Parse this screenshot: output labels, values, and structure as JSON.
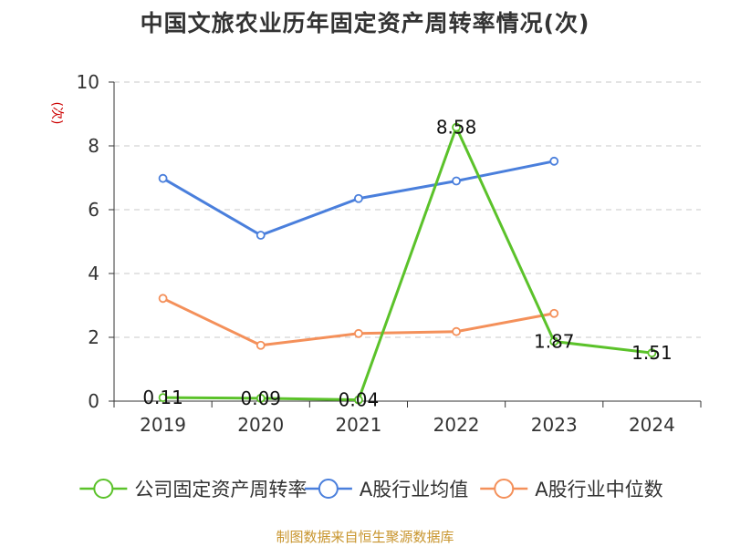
{
  "chart_data": {
    "type": "line",
    "title": "中国文旅农业历年固定资产周转率情况(次)",
    "ylabel": "(次)",
    "categories": [
      "2019",
      "2020",
      "2021",
      "2022",
      "2023",
      "2024"
    ],
    "ylim": [
      0,
      10
    ],
    "yticks": [
      0,
      2,
      4,
      6,
      8,
      10
    ],
    "grid": true,
    "legend_position": "bottom",
    "series": [
      {
        "name": "公司固定资产周转率",
        "color": "#5bc22a",
        "values": [
          0.11,
          0.09,
          0.04,
          8.58,
          1.87,
          1.51
        ],
        "data_labels": [
          "0.11",
          "0.09",
          "0.04",
          "8.58",
          "1.87",
          "1.51"
        ]
      },
      {
        "name": "A股行业均值",
        "color": "#4a7fdc",
        "values": [
          6.98,
          5.2,
          6.35,
          6.9,
          7.52,
          null
        ]
      },
      {
        "name": "A股行业中位数",
        "color": "#f4905a",
        "values": [
          3.22,
          1.75,
          2.12,
          2.18,
          2.75,
          null
        ]
      }
    ]
  },
  "source": "制图数据来自恒生聚源数据库"
}
